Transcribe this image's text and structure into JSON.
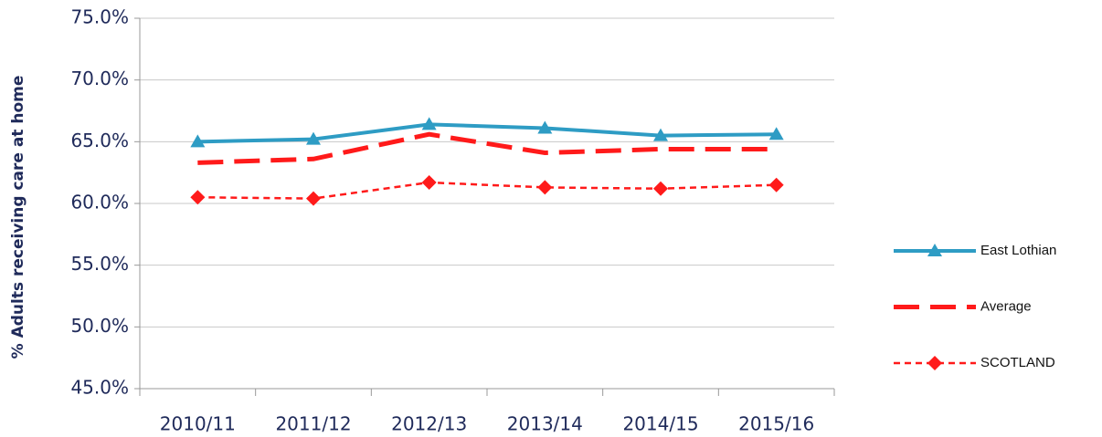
{
  "chart_data": {
    "type": "line",
    "y_label": "% Adults receiving care at home",
    "categories": [
      "2010/11",
      "2011/12",
      "2012/13",
      "2013/14",
      "2014/15",
      "2015/16"
    ],
    "series": [
      {
        "name": "East Lothian",
        "color": "#2e9cc4",
        "marker": "triangle",
        "dash": "solid",
        "values": [
          65.0,
          65.2,
          66.4,
          66.1,
          65.5,
          65.6
        ]
      },
      {
        "name": "Average",
        "color": "#ff1a1a",
        "marker": "none",
        "dash": "long",
        "values": [
          63.3,
          63.6,
          65.6,
          64.1,
          64.4,
          64.4
        ]
      },
      {
        "name": "SCOTLAND",
        "color": "#ff1a1a",
        "marker": "diamond",
        "dash": "short",
        "values": [
          60.5,
          60.4,
          61.7,
          61.3,
          61.2,
          61.5
        ]
      }
    ],
    "ylim": [
      45,
      75
    ],
    "yticks": [
      {
        "value": 45,
        "label": "45.0%"
      },
      {
        "value": 50,
        "label": "50.0%"
      },
      {
        "value": 55,
        "label": "55.0%"
      },
      {
        "value": 60,
        "label": "60.0%"
      },
      {
        "value": 65,
        "label": "65.0%"
      },
      {
        "value": 70,
        "label": "70.0%"
      },
      {
        "value": 75,
        "label": "75.0%"
      }
    ],
    "grid": true,
    "legend": "right"
  }
}
